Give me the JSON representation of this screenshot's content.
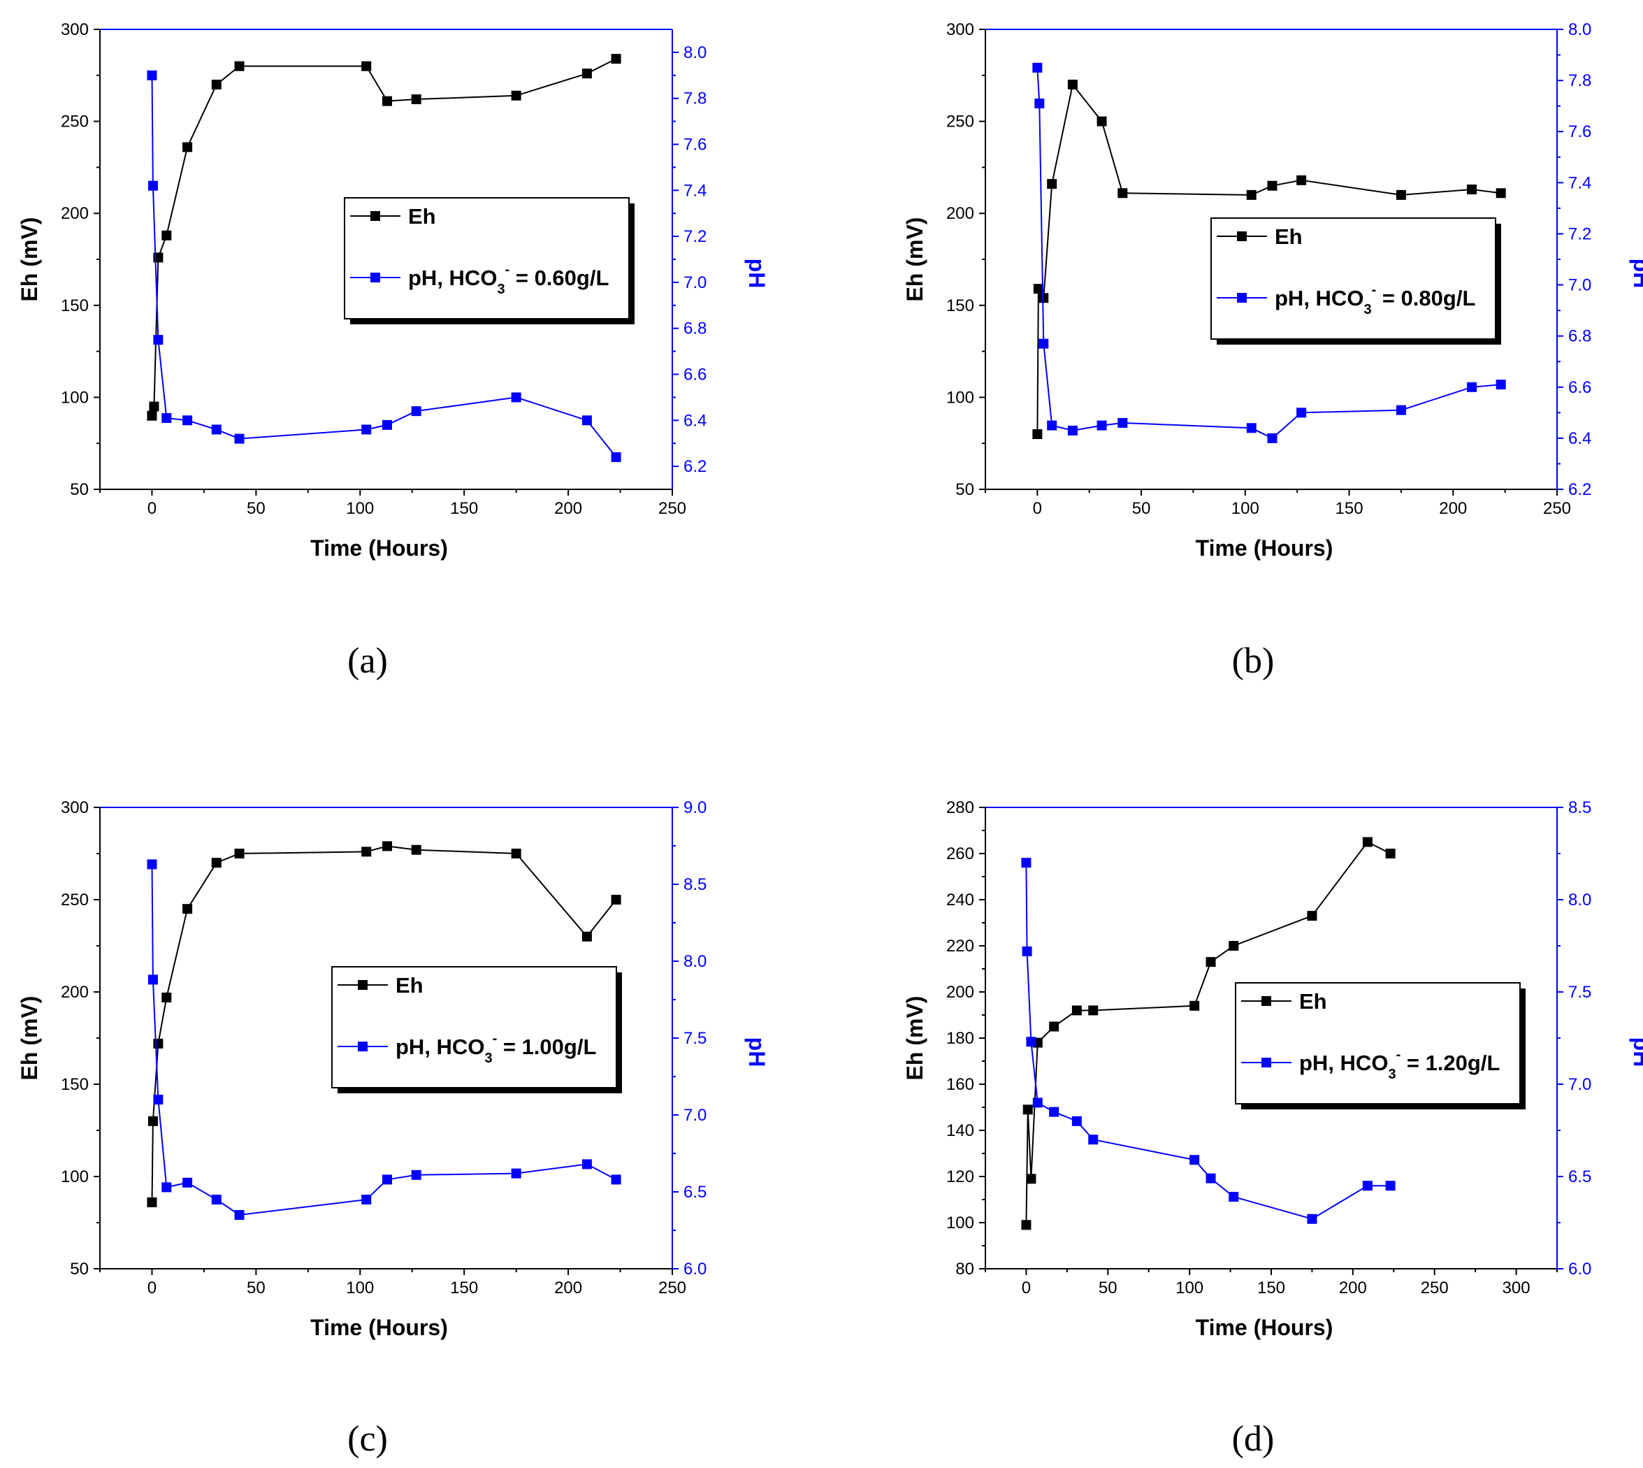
{
  "colors": {
    "eh": "#000000",
    "ph": "#0000ff",
    "frame": "#000000"
  },
  "chart_data": [
    {
      "type": "line",
      "caption": "(a)",
      "xlabel": "Time (Hours)",
      "ylabel": "Eh (mV)",
      "y2label": "pH",
      "xlim": [
        -25,
        250
      ],
      "ylim": [
        50,
        300
      ],
      "y2lim": [
        6.1,
        8.1
      ],
      "xticks": [
        0,
        50,
        100,
        150,
        200,
        250
      ],
      "yticks": [
        50,
        100,
        150,
        200,
        250,
        300
      ],
      "y2ticks": [
        6.2,
        6.4,
        6.6,
        6.8,
        7.0,
        7.2,
        7.4,
        7.6,
        7.8,
        8.0
      ],
      "xtick_labels": [
        "0",
        "50",
        "100",
        "150",
        "200",
        "250"
      ],
      "ytick_labels": [
        "50",
        "100",
        "150",
        "200",
        "250",
        "300"
      ],
      "y2tick_labels": [
        "6.2",
        "6.4",
        "6.6",
        "6.8",
        "7.0",
        "7.2",
        "7.4",
        "7.6",
        "7.8",
        "8.0"
      ],
      "legend": {
        "position": "center-right",
        "eh": "Eh",
        "ph_main": "pH, HCO",
        "ph_sub": "3",
        "ph_sup": "-",
        "ph_tail": " = 0.60g/L"
      },
      "series": [
        {
          "name": "Eh",
          "axis": "left",
          "x": [
            0,
            1,
            3,
            7,
            17,
            31,
            42,
            103,
            113,
            127,
            175,
            209,
            223
          ],
          "values": [
            90,
            95,
            176,
            188,
            236,
            270,
            280,
            280,
            261,
            262,
            264,
            276,
            284
          ]
        },
        {
          "name": "pH",
          "axis": "right",
          "x": [
            0,
            0.5,
            3,
            7,
            17,
            31,
            42,
            103,
            113,
            127,
            175,
            209,
            223
          ],
          "values": [
            7.9,
            7.42,
            6.75,
            6.41,
            6.4,
            6.36,
            6.32,
            6.36,
            6.38,
            6.44,
            6.5,
            6.4,
            6.24
          ]
        }
      ]
    },
    {
      "type": "line",
      "caption": "(b)",
      "xlabel": "Time (Hours)",
      "ylabel": "Eh (mV)",
      "y2label": "pH",
      "xlim": [
        -25,
        250
      ],
      "ylim": [
        50,
        300
      ],
      "y2lim": [
        6.2,
        8.0
      ],
      "xticks": [
        0,
        50,
        100,
        150,
        200,
        250
      ],
      "yticks": [
        50,
        100,
        150,
        200,
        250,
        300
      ],
      "y2ticks": [
        6.2,
        6.4,
        6.6,
        6.8,
        7.0,
        7.2,
        7.4,
        7.6,
        7.8,
        8.0
      ],
      "xtick_labels": [
        "0",
        "50",
        "100",
        "150",
        "200",
        "250"
      ],
      "ytick_labels": [
        "50",
        "100",
        "150",
        "200",
        "250",
        "300"
      ],
      "y2tick_labels": [
        "6.2",
        "6.4",
        "6.6",
        "6.8",
        "7.0",
        "7.2",
        "7.4",
        "7.6",
        "7.8",
        "8.0"
      ],
      "legend": {
        "position": "center-right",
        "eh": "Eh",
        "ph_main": "pH, HCO",
        "ph_sub": "3",
        "ph_sup": "-",
        "ph_tail": " = 0.80g/L"
      },
      "series": [
        {
          "name": "Eh",
          "axis": "left",
          "x": [
            0,
            0.5,
            3,
            7,
            17,
            31,
            41,
            103,
            113,
            127,
            175,
            209,
            223
          ],
          "values": [
            80,
            159,
            154,
            216,
            270,
            250,
            211,
            210,
            215,
            218,
            210,
            213,
            211
          ]
        },
        {
          "name": "pH",
          "axis": "right",
          "x": [
            0,
            1,
            3,
            7,
            17,
            31,
            41,
            103,
            113,
            127,
            175,
            209,
            223
          ],
          "values": [
            7.85,
            7.71,
            6.77,
            6.45,
            6.43,
            6.45,
            6.46,
            6.44,
            6.4,
            6.5,
            6.51,
            6.6,
            6.61
          ]
        }
      ]
    },
    {
      "type": "line",
      "caption": "(c)",
      "xlabel": "Time (Hours)",
      "ylabel": "Eh (mV)",
      "y2label": "pH",
      "xlim": [
        -25,
        250
      ],
      "ylim": [
        50,
        300
      ],
      "y2lim": [
        6.0,
        9.0
      ],
      "xticks": [
        0,
        50,
        100,
        150,
        200,
        250
      ],
      "yticks": [
        50,
        100,
        150,
        200,
        250,
        300
      ],
      "y2ticks": [
        6.0,
        6.5,
        7.0,
        7.5,
        8.0,
        8.5,
        9.0
      ],
      "xtick_labels": [
        "0",
        "50",
        "100",
        "150",
        "200",
        "250"
      ],
      "ytick_labels": [
        "50",
        "100",
        "150",
        "200",
        "250",
        "300"
      ],
      "y2tick_labels": [
        "6.0",
        "6.5",
        "7.0",
        "7.5",
        "8.0",
        "8.5",
        "9.0"
      ],
      "legend": {
        "position": "center-right",
        "eh": "Eh",
        "ph_main": "pH, HCO",
        "ph_sub": "3",
        "ph_sup": "-",
        "ph_tail": " = 1.00g/L"
      },
      "series": [
        {
          "name": "Eh",
          "axis": "left",
          "x": [
            0,
            0.5,
            3,
            7,
            17,
            31,
            42,
            103,
            113,
            127,
            175,
            209,
            223
          ],
          "values": [
            86,
            130,
            172,
            197,
            245,
            270,
            275,
            276,
            279,
            277,
            275,
            230,
            250
          ]
        },
        {
          "name": "pH",
          "axis": "right",
          "x": [
            0,
            0.5,
            3,
            7,
            17,
            31,
            42,
            103,
            113,
            127,
            175,
            209,
            223
          ],
          "values": [
            8.63,
            7.88,
            7.1,
            6.53,
            6.56,
            6.45,
            6.35,
            6.45,
            6.58,
            6.61,
            6.62,
            6.68,
            6.58
          ]
        }
      ]
    },
    {
      "type": "line",
      "caption": "(d)",
      "xlabel": "Time (Hours)",
      "ylabel": "Eh (mV)",
      "y2label": "pH",
      "xlim": [
        -25,
        325
      ],
      "ylim": [
        80,
        280
      ],
      "y2lim": [
        6.0,
        8.5
      ],
      "xticks": [
        0,
        50,
        100,
        150,
        200,
        250,
        300
      ],
      "yticks": [
        80,
        100,
        120,
        140,
        160,
        180,
        200,
        220,
        240,
        260,
        280
      ],
      "y2ticks": [
        6.0,
        6.5,
        7.0,
        7.5,
        8.0,
        8.5
      ],
      "xtick_labels": [
        "0",
        "50",
        "100",
        "150",
        "200",
        "250",
        "300"
      ],
      "ytick_labels": [
        "80",
        "100",
        "120",
        "140",
        "160",
        "180",
        "200",
        "220",
        "240",
        "260",
        "280"
      ],
      "y2tick_labels": [
        "6.0",
        "6.5",
        "7.0",
        "7.5",
        "8.0",
        "8.5"
      ],
      "legend": {
        "position": "center-right",
        "eh": "Eh",
        "ph_main": "pH, HCO",
        "ph_sub": "3",
        "ph_sup": "-",
        "ph_tail": " = 1.20g/L"
      },
      "series": [
        {
          "name": "Eh",
          "axis": "left",
          "x": [
            0,
            1,
            3,
            7,
            17,
            31,
            41,
            103,
            113,
            127,
            175,
            209,
            223
          ],
          "values": [
            99,
            149,
            119,
            178,
            185,
            192,
            192,
            194,
            213,
            220,
            233,
            265,
            260
          ]
        },
        {
          "name": "pH",
          "axis": "right",
          "x": [
            0,
            0.5,
            3,
            7,
            17,
            31,
            41,
            103,
            113,
            127,
            175,
            209,
            223
          ],
          "values": [
            8.2,
            7.72,
            7.23,
            6.9,
            6.85,
            6.8,
            6.7,
            6.59,
            6.49,
            6.39,
            6.27,
            6.45,
            6.45
          ]
        }
      ]
    }
  ]
}
